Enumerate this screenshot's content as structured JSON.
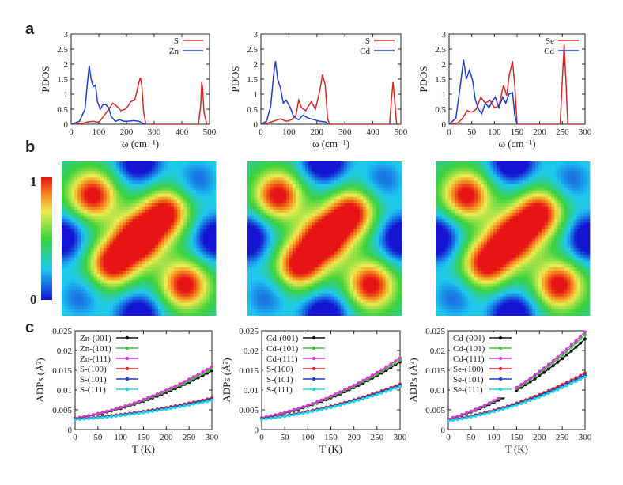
{
  "panel_letters": [
    "a",
    "b",
    "c"
  ],
  "colorbar": {
    "max_label": "1",
    "min_label": "0"
  },
  "chart_data": [
    {
      "type": "line",
      "xlabel": "ω (cm⁻¹)",
      "ylabel": "PDOS",
      "xlim": [
        0,
        500
      ],
      "ylim": [
        0,
        3
      ],
      "xticks": [
        "0",
        "100",
        "200",
        "300",
        "400",
        "500"
      ],
      "yticks": [
        "0",
        "0.5",
        "1",
        "1.5",
        "2",
        "2.5",
        "3"
      ],
      "legend": "top-right",
      "series": [
        {
          "name": "S",
          "color": "#d62728",
          "x": [
            0,
            40,
            60,
            80,
            100,
            120,
            140,
            150,
            165,
            180,
            195,
            205,
            215,
            230,
            245,
            250,
            255,
            262,
            270,
            460,
            468,
            472,
            475,
            480,
            490,
            500
          ],
          "y": [
            0,
            0.03,
            0.08,
            0.1,
            0.06,
            0.3,
            0.55,
            0.7,
            0.6,
            0.45,
            0.5,
            0.6,
            0.75,
            0.8,
            1.4,
            1.55,
            1.3,
            0.4,
            0,
            0,
            0.6,
            1.4,
            1.2,
            0.4,
            0,
            0
          ]
        },
        {
          "name": "Zn",
          "color": "#1f3fc8",
          "x": [
            0,
            30,
            50,
            58,
            65,
            72,
            80,
            88,
            95,
            105,
            115,
            125,
            135,
            145,
            160,
            175,
            190,
            205,
            225,
            245,
            260,
            270
          ],
          "y": [
            0,
            0.1,
            0.5,
            1.3,
            1.95,
            1.5,
            1.25,
            1.3,
            0.75,
            0.5,
            0.65,
            0.65,
            0.55,
            0.25,
            0.1,
            0.15,
            0.1,
            0.1,
            0.12,
            0.1,
            0.02,
            0
          ]
        }
      ]
    },
    {
      "type": "line",
      "xlabel": "ω (cm⁻¹)",
      "ylabel": "PDOS",
      "xlim": [
        0,
        500
      ],
      "ylim": [
        0,
        3
      ],
      "xticks": [
        "0",
        "100",
        "200",
        "300",
        "400",
        "500"
      ],
      "yticks": [
        "0",
        "0.5",
        "1",
        "1.5",
        "2",
        "2.5",
        "3"
      ],
      "legend": "top-right",
      "series": [
        {
          "name": "S",
          "color": "#d62728",
          "x": [
            0,
            30,
            50,
            70,
            90,
            110,
            125,
            135,
            145,
            160,
            180,
            195,
            210,
            220,
            230,
            238,
            245,
            460,
            466,
            472,
            478,
            485,
            500
          ],
          "y": [
            0,
            0.05,
            0.12,
            0.18,
            0.1,
            0.15,
            0.3,
            0.8,
            0.55,
            0.45,
            0.75,
            0.5,
            1.1,
            1.65,
            1.3,
            0.2,
            0,
            0,
            0.8,
            1.4,
            0.8,
            0,
            0
          ]
        },
        {
          "name": "Cd",
          "color": "#1f3fc8",
          "x": [
            0,
            20,
            35,
            45,
            52,
            60,
            70,
            80,
            90,
            105,
            115,
            125,
            135,
            150,
            170,
            190,
            210,
            230,
            240
          ],
          "y": [
            0,
            0.1,
            0.6,
            1.6,
            2.1,
            1.5,
            1.2,
            0.7,
            0.8,
            0.55,
            0.3,
            0.2,
            0.15,
            0.3,
            0.2,
            0.15,
            0.1,
            0.08,
            0
          ]
        }
      ]
    },
    {
      "type": "line",
      "xlabel": "ω (cm⁻¹)",
      "ylabel": "PDOS",
      "xlim": [
        0,
        300
      ],
      "ylim": [
        0,
        3
      ],
      "xticks": [
        "0",
        "50",
        "100",
        "150",
        "200",
        "250",
        "300"
      ],
      "yticks": [
        "0",
        "0.5",
        "1",
        "1.5",
        "2",
        "2.5",
        "3"
      ],
      "legend": "top-right",
      "series": [
        {
          "name": "Se",
          "color": "#d62728",
          "x": [
            0,
            20,
            30,
            40,
            50,
            60,
            70,
            80,
            90,
            100,
            110,
            120,
            127,
            133,
            140,
            145,
            150,
            245,
            250,
            254,
            258,
            262,
            300
          ],
          "y": [
            0,
            0.05,
            0.2,
            0.45,
            0.4,
            0.5,
            0.9,
            0.7,
            0.8,
            0.55,
            0.6,
            1.3,
            0.95,
            1.65,
            2.1,
            1.3,
            0,
            0,
            1.5,
            2.65,
            1.4,
            0,
            0
          ]
        },
        {
          "name": "Cd",
          "color": "#1f3fc8",
          "x": [
            0,
            15,
            25,
            32,
            38,
            45,
            52,
            58,
            65,
            72,
            80,
            88,
            95,
            102,
            110,
            118,
            125,
            132,
            140,
            145,
            150
          ],
          "y": [
            0,
            0.2,
            1.3,
            2.15,
            1.5,
            1.8,
            1.45,
            0.8,
            0.5,
            0.35,
            0.7,
            0.55,
            0.75,
            0.9,
            0.55,
            0.9,
            0.7,
            1.0,
            1.05,
            0.3,
            0
          ]
        }
      ]
    },
    {
      "type": "heatmap",
      "colorbar_range": [
        0,
        1
      ],
      "blobs": [
        {
          "x": 0.5,
          "y": 0.5,
          "v": 0.6
        },
        {
          "x": 0.2,
          "y": 0.22,
          "v": 0.9
        },
        {
          "x": 0.8,
          "y": 0.8,
          "v": 0.9
        },
        {
          "x": 0.32,
          "y": 0.67,
          "v": 0.85
        },
        {
          "x": 0.68,
          "y": 0.33,
          "v": 0.85
        },
        {
          "x": 0.45,
          "y": 0.55,
          "v": 0.35
        },
        {
          "x": 0.55,
          "y": 0.45,
          "v": 0.35
        },
        {
          "x": 0.5,
          "y": 0,
          "v": -0.7
        },
        {
          "x": 0.5,
          "y": 1,
          "v": -0.7
        },
        {
          "x": 0,
          "y": 0.5,
          "v": -0.7
        },
        {
          "x": 1,
          "y": 0.5,
          "v": -0.7
        },
        {
          "x": 0.12,
          "y": 0.88,
          "v": -0.35
        },
        {
          "x": 0.88,
          "y": 0.12,
          "v": -0.35
        }
      ]
    },
    {
      "type": "heatmap",
      "colorbar_range": [
        0,
        1
      ],
      "blobs": [
        {
          "x": 0.5,
          "y": 0.5,
          "v": 0.55
        },
        {
          "x": 0.2,
          "y": 0.22,
          "v": 0.9
        },
        {
          "x": 0.8,
          "y": 0.8,
          "v": 0.9
        },
        {
          "x": 0.33,
          "y": 0.68,
          "v": 0.85
        },
        {
          "x": 0.68,
          "y": 0.33,
          "v": 0.85
        },
        {
          "x": 0.45,
          "y": 0.55,
          "v": 0.35
        },
        {
          "x": 0.55,
          "y": 0.45,
          "v": 0.35
        },
        {
          "x": 0.5,
          "y": 0,
          "v": -0.75
        },
        {
          "x": 0.5,
          "y": 1,
          "v": -0.75
        },
        {
          "x": 0,
          "y": 0.5,
          "v": -0.75
        },
        {
          "x": 1,
          "y": 0.5,
          "v": -0.75
        },
        {
          "x": 0.12,
          "y": 0.88,
          "v": -0.35
        },
        {
          "x": 0.88,
          "y": 0.12,
          "v": -0.35
        }
      ]
    },
    {
      "type": "heatmap",
      "colorbar_range": [
        0,
        1
      ],
      "blobs": [
        {
          "x": 0.5,
          "y": 0.5,
          "v": 0.5
        },
        {
          "x": 0.2,
          "y": 0.22,
          "v": 0.9
        },
        {
          "x": 0.8,
          "y": 0.8,
          "v": 0.9
        },
        {
          "x": 0.32,
          "y": 0.67,
          "v": 0.85
        },
        {
          "x": 0.68,
          "y": 0.33,
          "v": 0.85
        },
        {
          "x": 0.45,
          "y": 0.55,
          "v": 0.35
        },
        {
          "x": 0.55,
          "y": 0.45,
          "v": 0.35
        },
        {
          "x": 0.5,
          "y": 0,
          "v": -0.75
        },
        {
          "x": 0.5,
          "y": 1,
          "v": -0.75
        },
        {
          "x": 0,
          "y": 0.5,
          "v": -0.75
        },
        {
          "x": 1,
          "y": 0.5,
          "v": -0.75
        },
        {
          "x": 0.12,
          "y": 0.88,
          "v": -0.35
        },
        {
          "x": 0.88,
          "y": 0.12,
          "v": -0.35
        }
      ]
    },
    {
      "type": "line",
      "xlabel": "T (K)",
      "ylabel": "ADPs (Å²)",
      "xlim": [
        0,
        300
      ],
      "ylim": [
        0,
        0.025
      ],
      "xticks": [
        "0",
        "50",
        "100",
        "150",
        "200",
        "250",
        "300"
      ],
      "yticks": [
        "0",
        "0.005",
        "0.01",
        "0.015",
        "0.02",
        "0.025"
      ],
      "legend": "top-left",
      "x": [
        0,
        10,
        20,
        30,
        40,
        50,
        60,
        70,
        80,
        90,
        100,
        110,
        120,
        130,
        140,
        150,
        160,
        170,
        180,
        190,
        200,
        210,
        220,
        230,
        240,
        250,
        260,
        270,
        280,
        290,
        300
      ],
      "series": [
        {
          "name": "Zn-(001)",
          "color": "#111111",
          "y0": 0.0028,
          "y300": 0.0149
        },
        {
          "name": "Zn-(101)",
          "color": "#3ec23e",
          "y0": 0.0029,
          "y300": 0.0154
        },
        {
          "name": "Zn-(111)",
          "color": "#d33ad3",
          "y0": 0.0029,
          "y300": 0.0159
        },
        {
          "name": "S-(100)",
          "color": "#d62728",
          "y0": 0.0027,
          "y300": 0.008
        },
        {
          "name": "S-(101)",
          "color": "#1f3fc8",
          "y0": 0.0026,
          "y300": 0.0077
        },
        {
          "name": "S-(111)",
          "color": "#27d3e0",
          "y0": 0.0025,
          "y300": 0.0074
        }
      ]
    },
    {
      "type": "line",
      "xlabel": "T (K)",
      "ylabel": "ADPs (Å²)",
      "xlim": [
        0,
        300
      ],
      "ylim": [
        0,
        0.025
      ],
      "xticks": [
        "0",
        "50",
        "100",
        "150",
        "200",
        "250",
        "300"
      ],
      "yticks": [
        "0",
        "0.005",
        "0.01",
        "0.015",
        "0.02",
        "0.025"
      ],
      "legend": "top-left",
      "x": [
        0,
        10,
        20,
        30,
        40,
        50,
        60,
        70,
        80,
        90,
        100,
        110,
        120,
        130,
        140,
        150,
        160,
        170,
        180,
        190,
        200,
        210,
        220,
        230,
        240,
        250,
        260,
        270,
        280,
        290,
        300
      ],
      "series": [
        {
          "name": "Cd-(001)",
          "color": "#111111",
          "y0": 0.0029,
          "y300": 0.0171
        },
        {
          "name": "Cd-(101)",
          "color": "#3ec23e",
          "y0": 0.003,
          "y300": 0.0176
        },
        {
          "name": "Cd-(111)",
          "color": "#d33ad3",
          "y0": 0.003,
          "y300": 0.0181
        },
        {
          "name": "S-(100)",
          "color": "#d62728",
          "y0": 0.0028,
          "y300": 0.0115
        },
        {
          "name": "S-(101)",
          "color": "#1f3fc8",
          "y0": 0.0027,
          "y300": 0.0112
        },
        {
          "name": "S-(111)",
          "color": "#27d3e0",
          "y0": 0.0026,
          "y300": 0.0109
        }
      ]
    },
    {
      "type": "line",
      "xlabel": "T (K)",
      "ylabel": "ADPs (Å²)",
      "xlim": [
        0,
        300
      ],
      "ylim": [
        0,
        0.025
      ],
      "xticks": [
        "0",
        "50",
        "100",
        "150",
        "200",
        "250",
        "300"
      ],
      "yticks": [
        "0",
        "0.005",
        "0.01",
        "0.015",
        "0.02",
        "0.025"
      ],
      "legend": "top-left",
      "x": [
        0,
        10,
        20,
        30,
        40,
        50,
        60,
        70,
        80,
        90,
        100,
        110,
        120,
        130,
        140,
        150,
        160,
        170,
        180,
        190,
        200,
        210,
        220,
        230,
        240,
        250,
        260,
        270,
        280,
        290,
        300
      ],
      "series": [
        {
          "name": "Cd-(001)",
          "color": "#111111",
          "y0": 0.0026,
          "y300": 0.0229
        },
        {
          "name": "Cd-(101)",
          "color": "#3ec23e",
          "y0": 0.0027,
          "y300": 0.024
        },
        {
          "name": "Cd-(111)",
          "color": "#d33ad3",
          "y0": 0.0027,
          "y300": 0.0247
        },
        {
          "name": "Se-(100)",
          "color": "#d62728",
          "y0": 0.0024,
          "y300": 0.0143
        },
        {
          "name": "Se-(101)",
          "color": "#1f3fc8",
          "y0": 0.0023,
          "y300": 0.0138
        },
        {
          "name": "Se-(111)",
          "color": "#27d3e0",
          "y0": 0.0022,
          "y300": 0.0133
        }
      ]
    }
  ]
}
